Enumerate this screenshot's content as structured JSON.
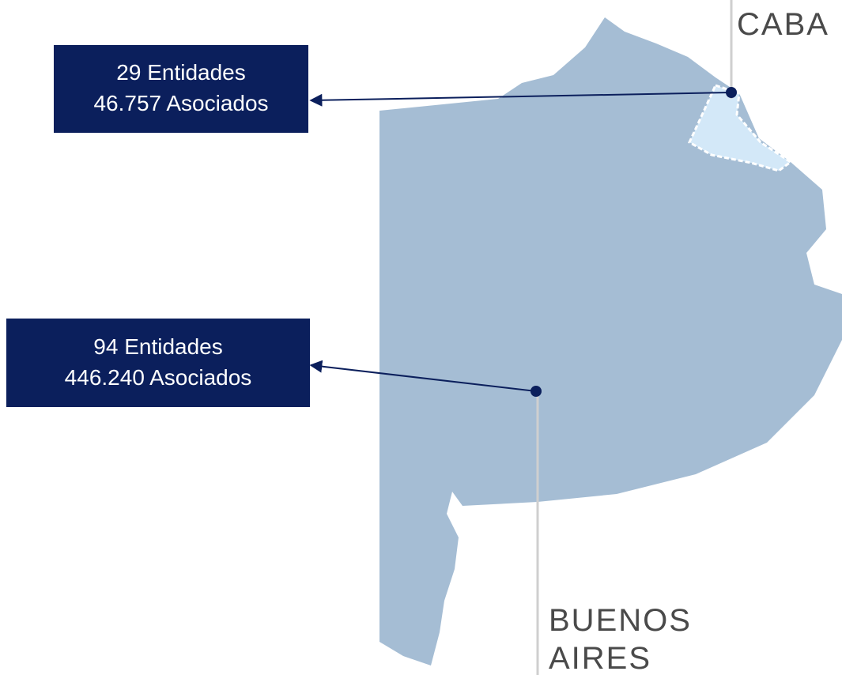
{
  "map": {
    "regions": [
      {
        "label": [
          "CABA"
        ],
        "info": [
          "29 Entidades",
          "46.757 Asociados"
        ]
      },
      {
        "label": [
          "BUENOS",
          "AIRES"
        ],
        "info": [
          "94 Entidades",
          "446.240 Asociados"
        ]
      }
    ]
  }
}
